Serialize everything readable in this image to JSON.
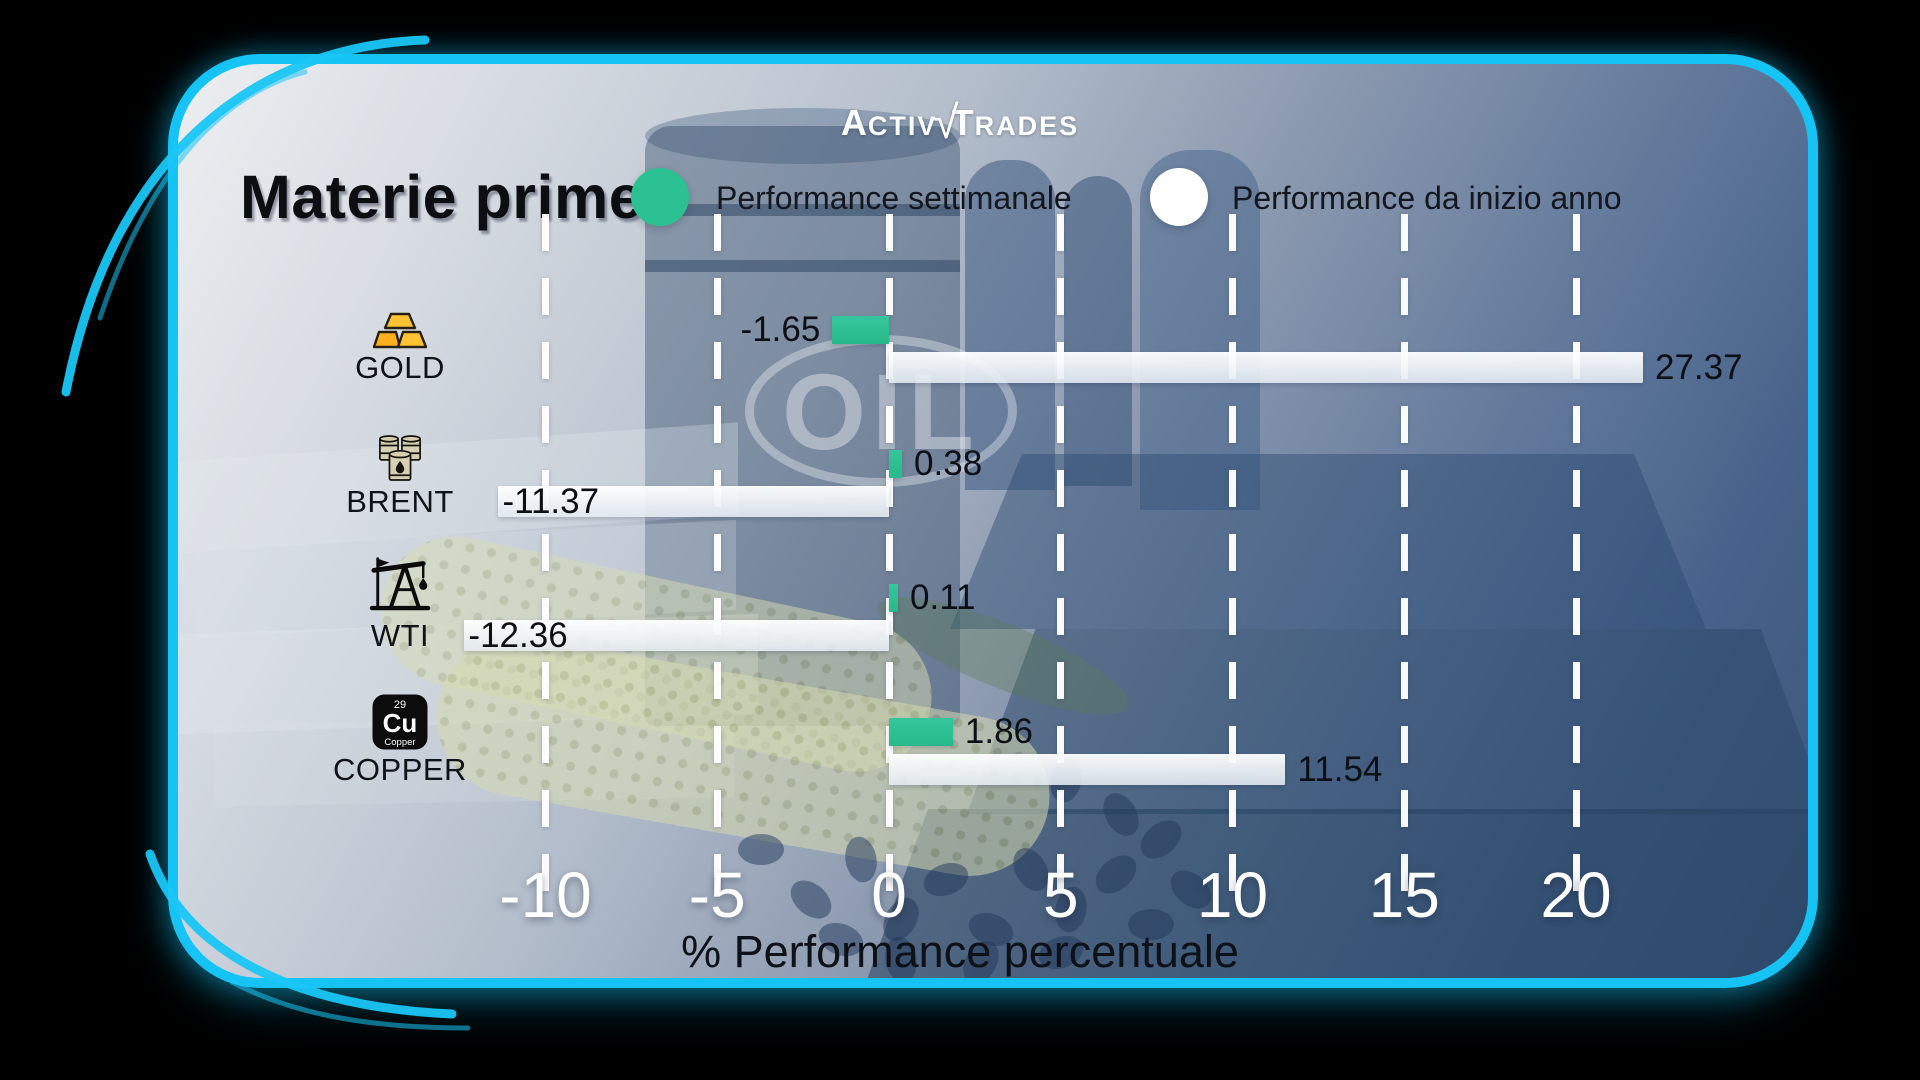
{
  "logo": {
    "part1": "A",
    "part1b": "CTIV",
    "mark": "√",
    "part2": "T",
    "part2b": "RADES"
  },
  "title": "Materie prime",
  "legend": {
    "weekly": {
      "label": "Performance settimanale",
      "color": "#2cc193"
    },
    "ytd": {
      "label": "Performance da inizio anno",
      "color": "#ffffff"
    }
  },
  "watermark": "OIL",
  "copper_icon": {
    "number": "29",
    "symbol": "Cu",
    "name": "Copper"
  },
  "colors": {
    "card_border": "#15c3f5",
    "bar_weekly": "#2cc193",
    "bar_ytd": "#f2f6fa",
    "grid": "#ffffff",
    "tick_text": "#ffffff",
    "value_text": "#0c0f14"
  },
  "chart_data": {
    "type": "bar",
    "orientation": "horizontal",
    "title": "Materie prime",
    "categories": [
      "GOLD",
      "BRENT",
      "WTI",
      "COPPER"
    ],
    "category_icons": [
      "gold-bars-icon",
      "oil-barrels-icon",
      "oil-pump-icon",
      "copper-element-icon"
    ],
    "series": [
      {
        "name": "Performance settimanale",
        "color": "#2cc193",
        "values": [
          -1.65,
          0.38,
          0.11,
          1.86
        ]
      },
      {
        "name": "Performance da inizio anno",
        "color": "#f2f6fa",
        "values": [
          27.37,
          -11.37,
          -12.36,
          11.54
        ]
      }
    ],
    "value_labels": {
      "weekly": [
        "-1.65",
        "0.38",
        "0.11",
        "1.86"
      ],
      "ytd": [
        "27.37",
        "-11.37",
        "-12.36",
        "11.54"
      ]
    },
    "xlabel": "% Performance percentuale",
    "x_ticks": [
      "-10",
      "-5",
      "0",
      "5",
      "10",
      "15",
      "20"
    ],
    "x_tick_values": [
      -10,
      -5,
      0,
      5,
      10,
      15,
      20
    ],
    "xlim": [
      -13.2,
      21.9
    ],
    "grid": "vertical-dashed-white",
    "legend_position": "top"
  }
}
